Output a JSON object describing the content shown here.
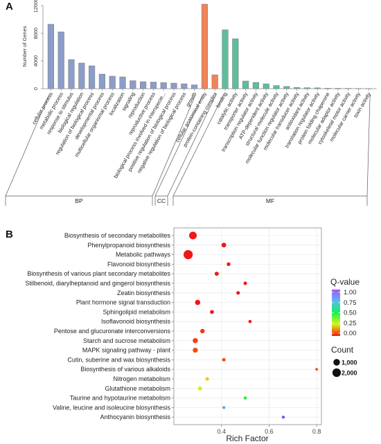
{
  "chart_data": [
    {
      "panel": "A",
      "type": "bar",
      "ylabel": "Number of Genes",
      "ylim": [
        0,
        12000
      ],
      "yticks": [
        0,
        4000,
        8000,
        12000
      ],
      "grid": false,
      "groups": [
        {
          "name": "BP",
          "color": "#8b9dc8",
          "categories": [
            "cellular process",
            "metabolic process",
            "response to stimulus",
            "biological regulation",
            "regulation of biological process",
            "developmental process",
            "multicellular organismal process",
            "localization",
            "signaling",
            "reproduction",
            "reproductive process",
            "biological process involved in interspecie...",
            "positive regulation of biological process",
            "negative regulation of biological process",
            "growth"
          ],
          "values": [
            9300,
            8200,
            4200,
            3700,
            3300,
            2100,
            1800,
            1700,
            1150,
            1000,
            950,
            880,
            800,
            700,
            550
          ]
        },
        {
          "name": "CC",
          "color": "#f0845a",
          "categories": [
            "cellular anatomical entity",
            "protein-containing complex"
          ],
          "values": [
            12200,
            2000
          ]
        },
        {
          "name": "MF",
          "color": "#5fbd9b",
          "categories": [
            "binding",
            "catalytic activity",
            "transporter activity",
            "transcription regulator activity",
            "ATP-dependent activity",
            "structural molecule activity",
            "molecular function regulator activity",
            "molecular transducer activity",
            "antioxidant activity",
            "translation regulator activity",
            "protein folding chaperone",
            "molecular adaptor activity",
            "cytoskeletal motor activity",
            "molecular carrier activity",
            "toxin activity"
          ],
          "values": [
            8500,
            7200,
            1100,
            900,
            700,
            450,
            320,
            180,
            140,
            120,
            60,
            50,
            40,
            30,
            20
          ]
        }
      ]
    },
    {
      "panel": "B",
      "type": "scatter",
      "xlabel": "Rich Factor",
      "xlim": [
        0.2,
        0.82
      ],
      "xticks": [
        0.4,
        0.6,
        0.8
      ],
      "legend_color_title": "Q-value",
      "legend_color_ticks": [
        "1.00",
        "0.75",
        "0.50",
        "0.25",
        "0.00"
      ],
      "legend_color_range": [
        0,
        1
      ],
      "legend_size_title": "Count",
      "legend_size_labels": [
        "1,000",
        "2,000"
      ],
      "legend_size_values": [
        1000,
        2000
      ],
      "legend_placement": "right",
      "terms": [
        {
          "name": "Biosynthesis of secondary metabolites",
          "rich": 0.28,
          "count": 1500,
          "q": 0.0
        },
        {
          "name": "Phenylpropanoid biosynthesis",
          "rich": 0.41,
          "count": 350,
          "q": 0.0
        },
        {
          "name": "Metabolic pathways",
          "rich": 0.26,
          "count": 2400,
          "q": 0.0
        },
        {
          "name": "Flavonoid biosynthesis",
          "rich": 0.43,
          "count": 150,
          "q": 0.0
        },
        {
          "name": "Biosynthesis of various plant secondary metabolites",
          "rich": 0.38,
          "count": 220,
          "q": 0.0
        },
        {
          "name": "Stilbenoid, diarylheptanoid and gingerol biosynthesis",
          "rich": 0.5,
          "count": 120,
          "q": 0.0
        },
        {
          "name": "Zeatin biosynthesis",
          "rich": 0.47,
          "count": 130,
          "q": 0.0
        },
        {
          "name": "Plant hormone signal transduction",
          "rich": 0.3,
          "count": 500,
          "q": 0.0
        },
        {
          "name": "Sphingolipid metabolism",
          "rich": 0.36,
          "count": 180,
          "q": 0.0
        },
        {
          "name": "Isoflavonoid biosynthesis",
          "rich": 0.52,
          "count": 80,
          "q": 0.0
        },
        {
          "name": "Pentose and glucuronate interconversions",
          "rich": 0.32,
          "count": 300,
          "q": 0.03
        },
        {
          "name": "Starch and sucrose metabolism",
          "rich": 0.29,
          "count": 480,
          "q": 0.04
        },
        {
          "name": "MAPK signaling pathway - plant",
          "rich": 0.29,
          "count": 450,
          "q": 0.05
        },
        {
          "name": "Cutin, suberine and wax biosynthesis",
          "rich": 0.41,
          "count": 110,
          "q": 0.05
        },
        {
          "name": "Biosynthesis of various alkaloids",
          "rich": 0.8,
          "count": 40,
          "q": 0.07
        },
        {
          "name": "Nitrogen metabolism",
          "rich": 0.34,
          "count": 130,
          "q": 0.18
        },
        {
          "name": "Glutathione metabolism",
          "rich": 0.31,
          "count": 190,
          "q": 0.27
        },
        {
          "name": "Taurine and hypotaurine metabolism",
          "rich": 0.5,
          "count": 60,
          "q": 0.47
        },
        {
          "name": "Valine, leucine and isoleucine biosynthesis",
          "rich": 0.41,
          "count": 50,
          "q": 0.78
        },
        {
          "name": "Anthocyanin biosynthesis",
          "rich": 0.66,
          "count": 45,
          "q": 0.9
        }
      ]
    }
  ]
}
